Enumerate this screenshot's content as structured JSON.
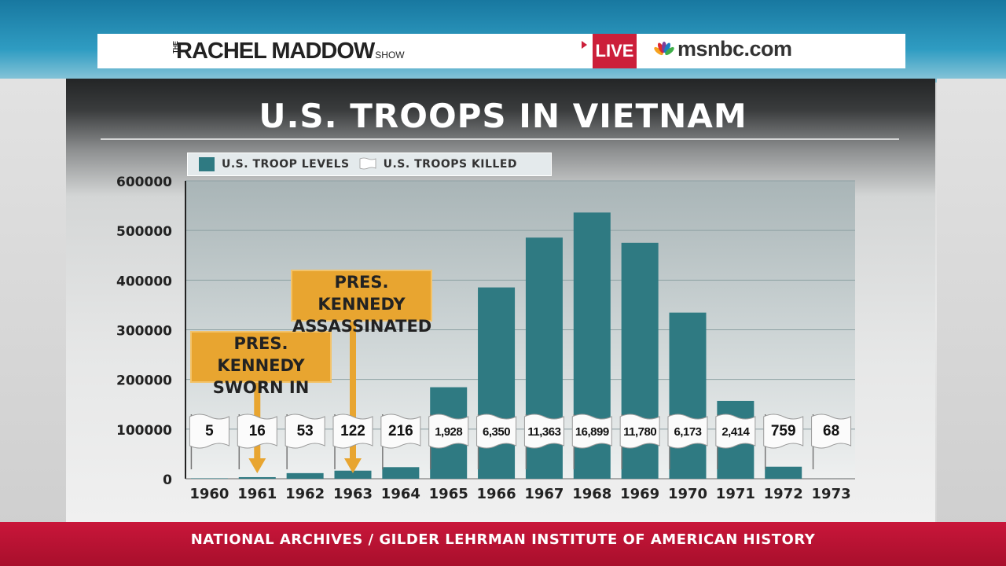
{
  "header": {
    "show_name": "RACHEL MADDOW",
    "show_prefix": "THE",
    "show_suffix": "SHOW",
    "live_label": "LIVE",
    "network_url": "msnbc.com",
    "peacock_icon": "nbc-peacock-icon"
  },
  "colors": {
    "bar": "#2f7a82",
    "live": "#cc1f3a",
    "callout": "#e8a530",
    "footer": "#c9163a"
  },
  "callouts": {
    "sworn_in": [
      "PRES. KENNEDY",
      "SWORN IN"
    ],
    "assassinated": [
      "PRES. KENNEDY",
      "ASSASSINATED"
    ]
  },
  "footer": {
    "source": "NATIONAL ARCHIVES / GILDER LEHRMAN INSTITUTE OF AMERICAN HISTORY"
  },
  "chart_data": {
    "type": "bar",
    "title": "U.S. TROOPS IN VIETNAM",
    "legend": [
      "U.S. TROOP LEVELS",
      "U.S. TROOPS KILLED"
    ],
    "legend_placement": "top-left",
    "categories": [
      "1960",
      "1961",
      "1962",
      "1963",
      "1964",
      "1965",
      "1966",
      "1967",
      "1968",
      "1969",
      "1970",
      "1971",
      "1972",
      "1973"
    ],
    "series": [
      {
        "name": "U.S. TROOP LEVELS",
        "values": [
          900,
          3200,
          11300,
          16300,
          23300,
          184300,
          385300,
          485600,
          536100,
          475200,
          334600,
          156800,
          24200,
          50
        ]
      }
    ],
    "killed_labels": [
      "5",
      "16",
      "53",
      "122",
      "216",
      "1,928",
      "6,350",
      "11,363",
      "16,899",
      "11,780",
      "6,173",
      "2,414",
      "759",
      "68"
    ],
    "ylim": [
      0,
      600000
    ],
    "yticks": [
      "0",
      "100000",
      "200000",
      "300000",
      "400000",
      "500000",
      "600000"
    ],
    "grid": true
  }
}
